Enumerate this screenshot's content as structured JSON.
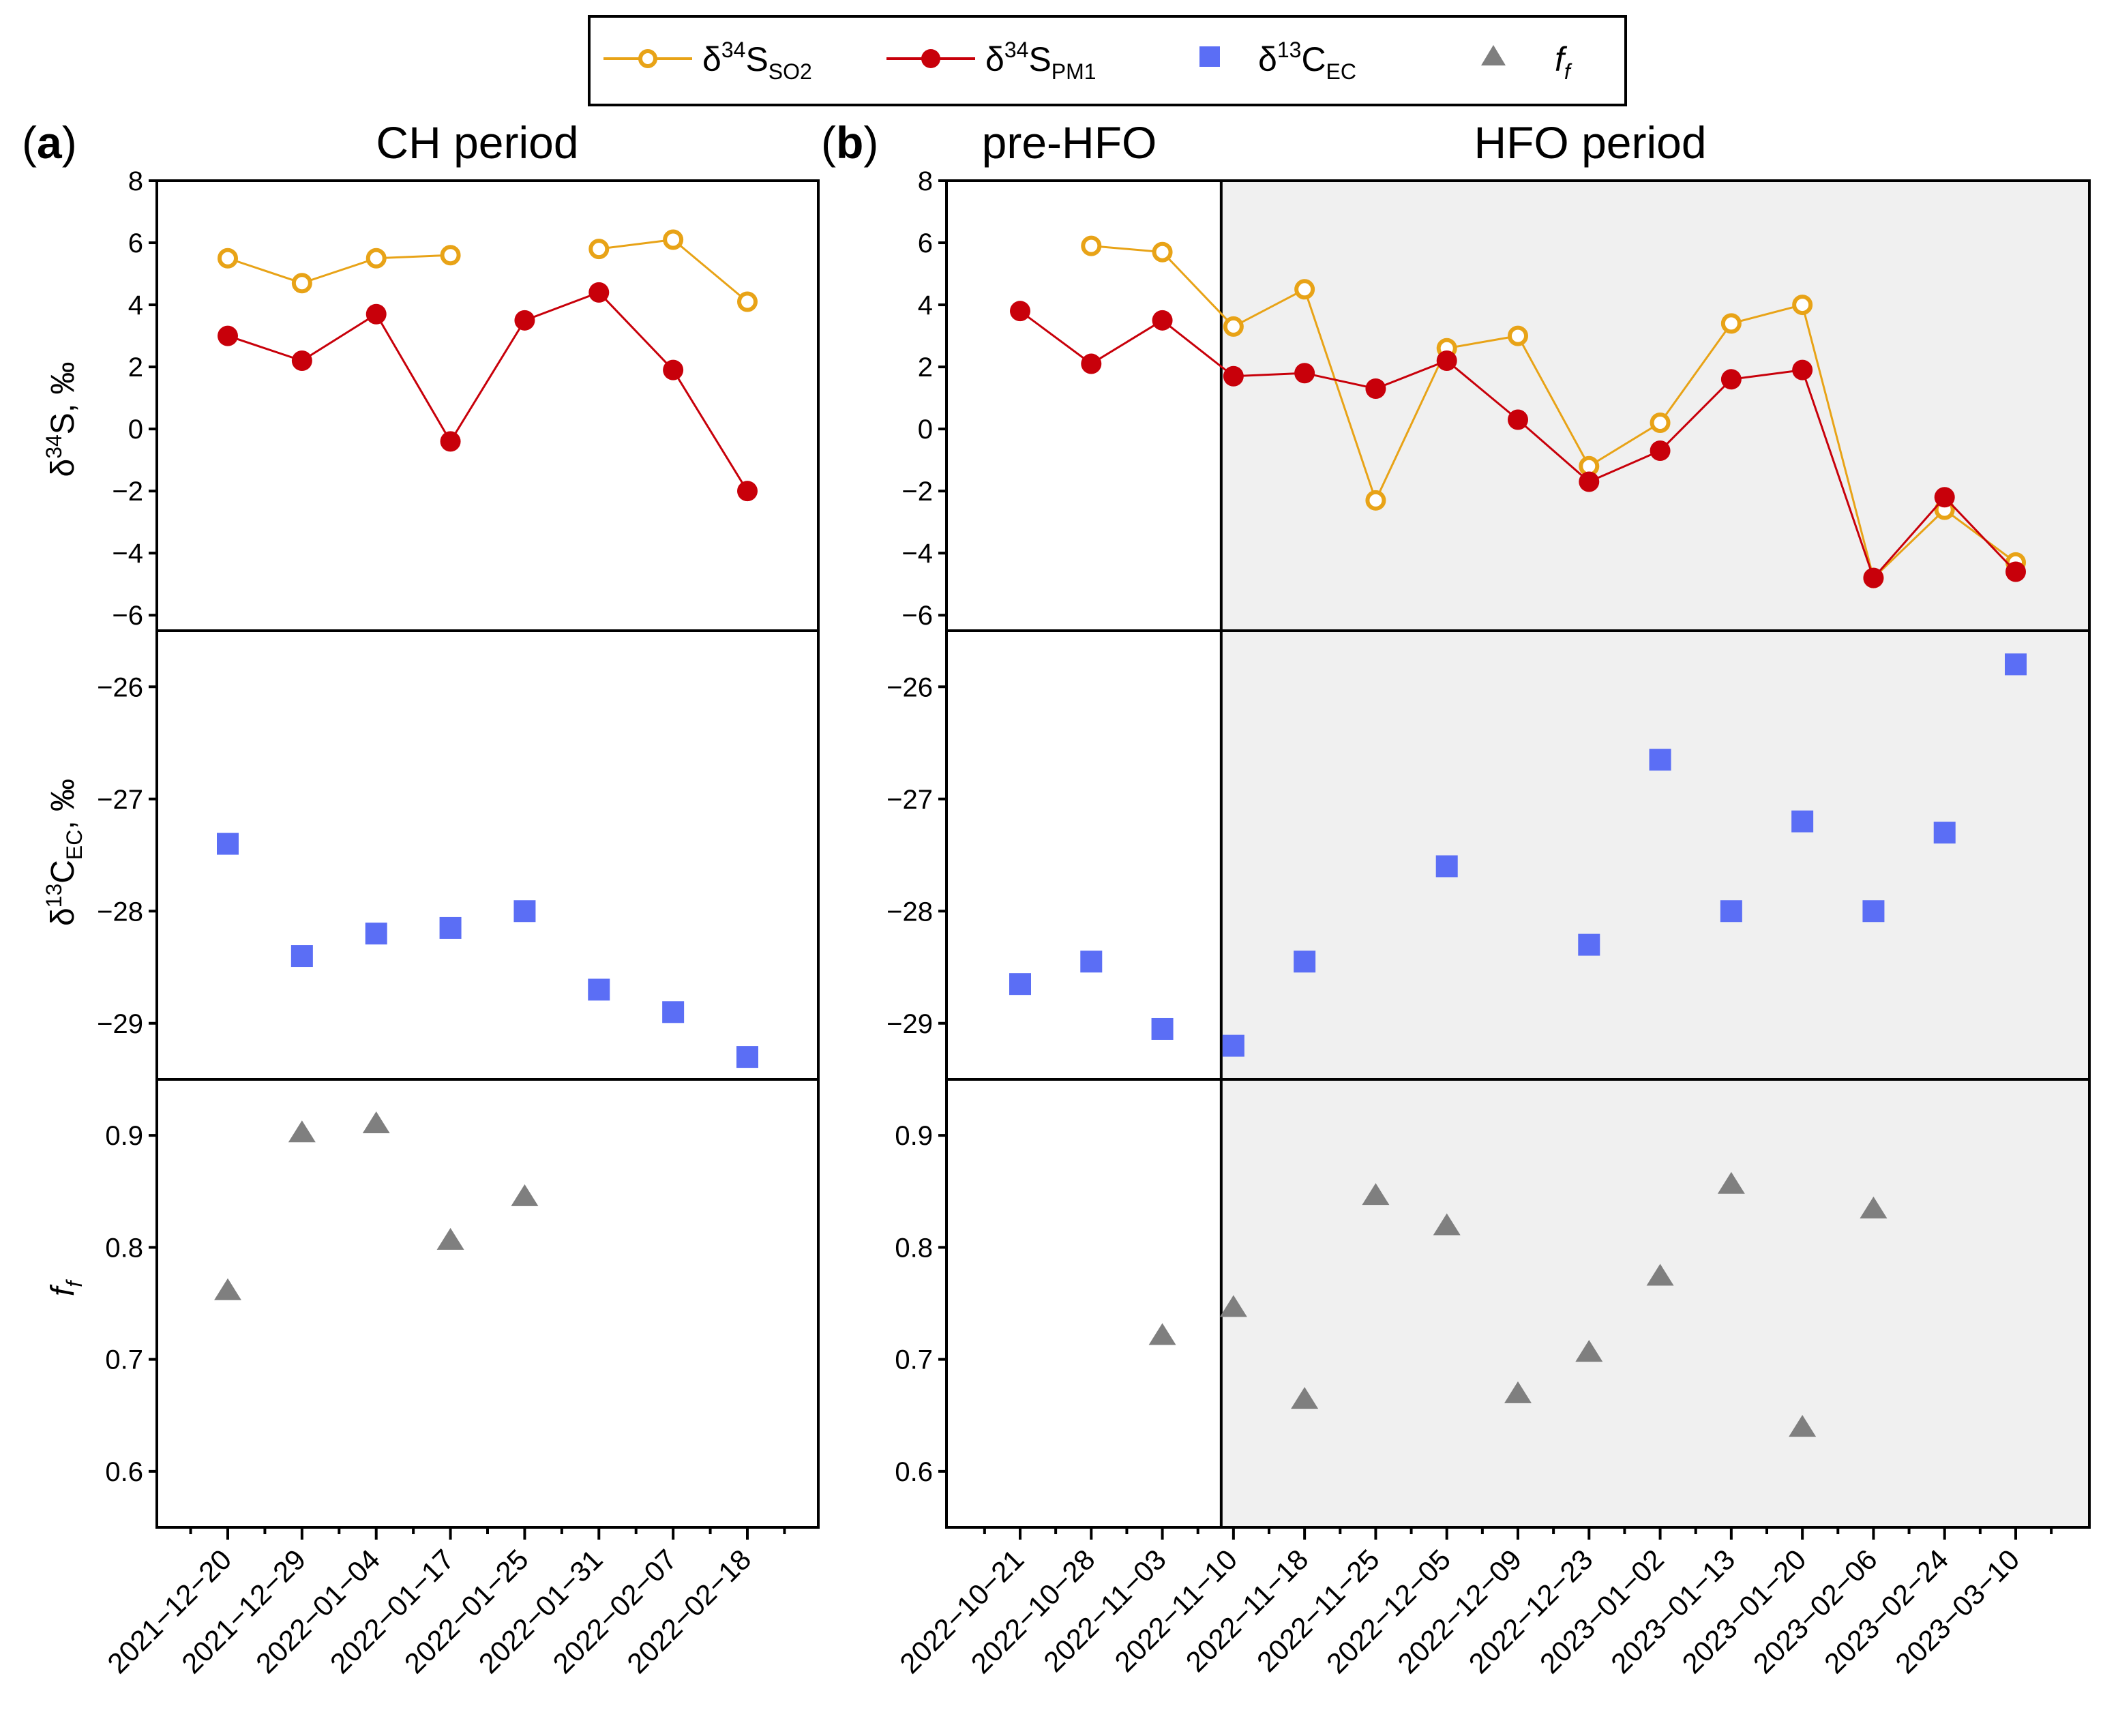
{
  "legend": {
    "items": [
      {
        "main": "δ",
        "sup": "34",
        "letter": "S",
        "sub": "SO2"
      },
      {
        "main": "δ",
        "sup": "34",
        "letter": "S",
        "sub": "PM1"
      },
      {
        "main": "δ",
        "sup": "13",
        "letter": "C",
        "sub": "EC"
      },
      {
        "main": "f",
        "sub": "f"
      }
    ]
  },
  "panels": {
    "a": {
      "letter": "a",
      "title": "CH period"
    },
    "b": {
      "letter": "b",
      "title_left": "pre-HFO",
      "title_right": "HFO period"
    }
  },
  "axis_labels": {
    "row1": {
      "pre": "δ",
      "sup": "34",
      "post": "S, ‰"
    },
    "row2": {
      "pre": "δ",
      "sup": "13",
      "mid": "C",
      "sub": "EC",
      "post": ", ‰"
    },
    "row3": {
      "pre": "f",
      "sub": "f"
    }
  },
  "colors": {
    "so2": "#e8a317",
    "pm1": "#c8000a",
    "ec": "#5b6ef5",
    "ff": "#7f7f7f",
    "shade": "#f0f0f0"
  },
  "chart_data": [
    {
      "type": "line",
      "panel": "a",
      "row": 1,
      "categories": [
        "2021-12-20",
        "2021-12-29",
        "2022-01-04",
        "2022-01-17",
        "2022-01-25",
        "2022-01-31",
        "2022-02-07",
        "2022-02-18"
      ],
      "series": [
        {
          "name": "δ34S SO2",
          "values": [
            5.5,
            4.7,
            5.5,
            5.6,
            null,
            5.8,
            6.1,
            4.1
          ]
        },
        {
          "name": "δ34S PM1",
          "values": [
            3.0,
            2.2,
            3.7,
            -0.4,
            3.5,
            4.4,
            1.9,
            -2.0
          ]
        }
      ],
      "ylabel": "δ34S, ‰",
      "ylim": [
        -6.5,
        8.0
      ],
      "yticks": [
        -6,
        -4,
        -2,
        0,
        2,
        4,
        6,
        8
      ]
    },
    {
      "type": "scatter",
      "panel": "a",
      "row": 2,
      "categories": [
        "2021-12-20",
        "2021-12-29",
        "2022-01-04",
        "2022-01-17",
        "2022-01-25",
        "2022-01-31",
        "2022-02-07",
        "2022-02-18"
      ],
      "series": [
        {
          "name": "δ13C EC",
          "values": [
            -27.4,
            -28.4,
            -28.2,
            -28.15,
            -28.0,
            -28.7,
            -28.9,
            -29.3
          ]
        }
      ],
      "ylabel": "δ13C EC, ‰",
      "ylim": [
        -29.5,
        -25.5
      ],
      "yticks": [
        -29,
        -28,
        -27,
        -26
      ]
    },
    {
      "type": "scatter",
      "panel": "a",
      "row": 3,
      "categories": [
        "2021-12-20",
        "2021-12-29",
        "2022-01-04",
        "2022-01-17",
        "2022-01-25",
        "2022-01-31",
        "2022-02-07",
        "2022-02-18"
      ],
      "series": [
        {
          "name": "f f",
          "values": [
            0.762,
            0.903,
            0.911,
            0.807,
            0.846,
            null,
            null,
            null
          ]
        }
      ],
      "ylabel": "f f",
      "ylim": [
        0.55,
        0.95
      ],
      "yticks": [
        0.6,
        0.7,
        0.8,
        0.9
      ]
    },
    {
      "type": "line",
      "panel": "b",
      "row": 1,
      "categories": [
        "2022-10-21",
        "2022-10-28",
        "2022-11-03",
        "2022-11-10",
        "2022-11-18",
        "2022-11-25",
        "2022-12-05",
        "2022-12-09",
        "2022-12-23",
        "2023-01-02",
        "2023-01-13",
        "2023-01-20",
        "2023-02-06",
        "2023-02-24",
        "2023-03-10"
      ],
      "series": [
        {
          "name": "δ34S SO2",
          "values": [
            null,
            5.9,
            5.7,
            3.3,
            4.5,
            -2.3,
            2.6,
            3.0,
            -1.2,
            0.2,
            3.4,
            4.0,
            -4.8,
            -2.6,
            -4.3
          ]
        },
        {
          "name": "δ34S PM1",
          "values": [
            3.8,
            2.1,
            3.5,
            1.7,
            1.8,
            1.3,
            2.2,
            0.3,
            -1.7,
            -0.7,
            1.6,
            1.9,
            -4.8,
            -2.2,
            -4.6
          ]
        }
      ],
      "ylim": [
        -6.5,
        8.0
      ],
      "yticks": [
        -6,
        -4,
        -2,
        0,
        2,
        4,
        6,
        8
      ],
      "shaded_from": "2022-11-10"
    },
    {
      "type": "scatter",
      "panel": "b",
      "row": 2,
      "categories": [
        "2022-10-21",
        "2022-10-28",
        "2022-11-03",
        "2022-11-10",
        "2022-11-18",
        "2022-11-25",
        "2022-12-05",
        "2022-12-09",
        "2022-12-23",
        "2023-01-02",
        "2023-01-13",
        "2023-01-20",
        "2023-02-06",
        "2023-02-24",
        "2023-03-10"
      ],
      "series": [
        {
          "name": "δ13C EC",
          "values": [
            -28.65,
            -28.45,
            -29.05,
            -29.2,
            -28.45,
            null,
            -27.6,
            null,
            -28.3,
            -26.65,
            -28.0,
            -27.2,
            -28.0,
            -27.3,
            -25.8
          ]
        }
      ],
      "ylim": [
        -29.5,
        -25.5
      ],
      "yticks": [
        -29,
        -28,
        -27,
        -26
      ],
      "shaded_from": "2022-11-10"
    },
    {
      "type": "scatter",
      "panel": "b",
      "row": 3,
      "categories": [
        "2022-10-21",
        "2022-10-28",
        "2022-11-03",
        "2022-11-10",
        "2022-11-18",
        "2022-11-25",
        "2022-12-05",
        "2022-12-09",
        "2022-12-23",
        "2023-01-02",
        "2023-01-13",
        "2023-01-20",
        "2023-02-06",
        "2023-02-24",
        "2023-03-10"
      ],
      "series": [
        {
          "name": "f f",
          "values": [
            null,
            null,
            0.722,
            0.747,
            0.665,
            0.847,
            0.82,
            0.67,
            0.707,
            0.775,
            0.857,
            0.64,
            0.835,
            null,
            null
          ]
        }
      ],
      "ylim": [
        0.55,
        0.95
      ],
      "yticks": [
        0.6,
        0.7,
        0.8,
        0.9
      ],
      "shaded_from": "2022-11-10"
    }
  ]
}
